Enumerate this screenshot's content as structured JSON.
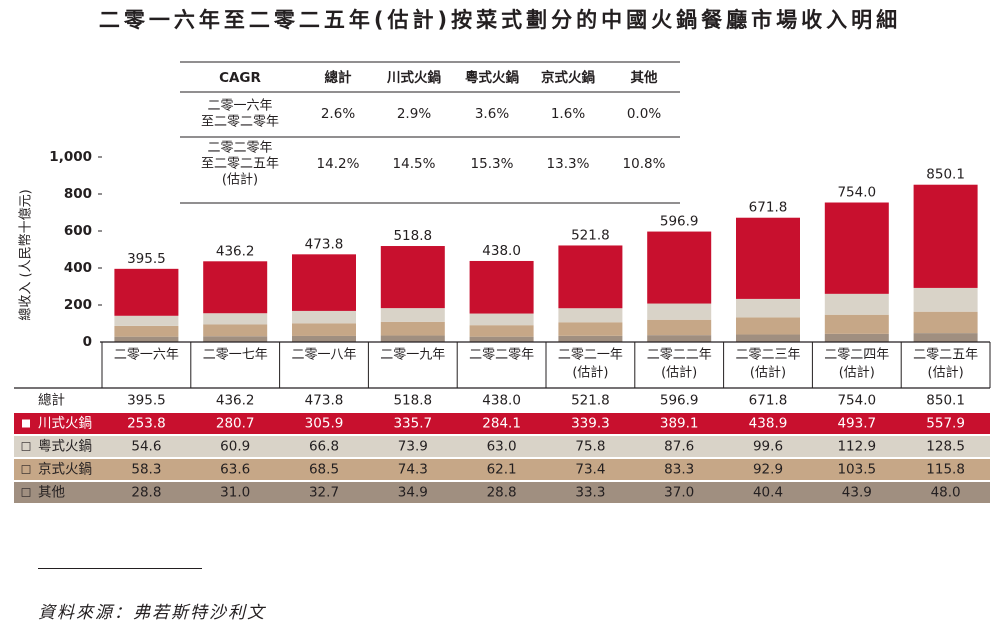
{
  "title": "二零一六年至二零二五年(估計)按菜式劃分的中國火鍋餐廳市場收入明細",
  "source": "資料來源：弗若斯特沙利文",
  "colors": {
    "sichuan": "#c8102e",
    "cantonese": "#d9d3c8",
    "beijing": "#c6a787",
    "others": "#a08f80",
    "text": "#231f20"
  },
  "cagr_table": {
    "headers": [
      "CAGR",
      "總計",
      "川式火鍋",
      "粵式火鍋",
      "京式火鍋",
      "其他"
    ],
    "rows": [
      {
        "period": [
          "二零一六年",
          "至二零二零年"
        ],
        "values": [
          "2.6%",
          "2.9%",
          "3.6%",
          "1.6%",
          "0.0%"
        ]
      },
      {
        "period": [
          "二零二零年",
          "至二零二五年",
          "(估計)"
        ],
        "values": [
          "14.2%",
          "14.5%",
          "15.3%",
          "13.3%",
          "10.8%"
        ]
      }
    ]
  },
  "chart_data": {
    "type": "bar",
    "stacked": true,
    "ylabel": "總收入 (人民幣十億元)",
    "ylim": [
      0,
      1000
    ],
    "yticks": [
      "0",
      "200",
      "400",
      "600",
      "800",
      "1,000"
    ],
    "ytick_values": [
      0,
      200,
      400,
      600,
      800,
      1000
    ],
    "categories": [
      [
        "二零一六年"
      ],
      [
        "二零一七年"
      ],
      [
        "二零一八年"
      ],
      [
        "二零一九年"
      ],
      [
        "二零二零年"
      ],
      [
        "二零二一年",
        "(估計)"
      ],
      [
        "二零二二年",
        "(估計)"
      ],
      [
        "二零二三年",
        "(估計)"
      ],
      [
        "二零二四年",
        "(估計)"
      ],
      [
        "二零二五年",
        "(估計)"
      ]
    ],
    "totals": [
      395.5,
      436.2,
      473.8,
      518.8,
      438.0,
      521.8,
      596.9,
      671.8,
      754.0,
      850.1
    ],
    "total_labels": [
      "395.5",
      "436.2",
      "473.8",
      "518.8",
      "438.0",
      "521.8",
      "596.9",
      "671.8",
      "754.0",
      "850.1"
    ],
    "total_row_label": "總計",
    "series": [
      {
        "name": "其他",
        "key": "others",
        "values": [
          28.8,
          31.0,
          32.7,
          34.9,
          28.8,
          33.3,
          37.0,
          40.4,
          43.9,
          48.0
        ],
        "labels": [
          "28.8",
          "31.0",
          "32.7",
          "34.9",
          "28.8",
          "33.3",
          "37.0",
          "40.4",
          "43.9",
          "48.0"
        ]
      },
      {
        "name": "京式火鍋",
        "key": "beijing",
        "values": [
          58.3,
          63.6,
          68.5,
          74.3,
          62.1,
          73.4,
          83.3,
          92.9,
          103.5,
          115.8
        ],
        "labels": [
          "58.3",
          "63.6",
          "68.5",
          "74.3",
          "62.1",
          "73.4",
          "83.3",
          "92.9",
          "103.5",
          "115.8"
        ]
      },
      {
        "name": "粵式火鍋",
        "key": "cantonese",
        "values": [
          54.6,
          60.9,
          66.8,
          73.9,
          63.0,
          75.8,
          87.6,
          99.6,
          112.9,
          128.5
        ],
        "labels": [
          "54.6",
          "60.9",
          "66.8",
          "73.9",
          "63.0",
          "75.8",
          "87.6",
          "99.6",
          "112.9",
          "128.5"
        ]
      },
      {
        "name": "川式火鍋",
        "key": "sichuan",
        "values": [
          253.8,
          280.7,
          305.9,
          335.7,
          284.1,
          339.3,
          389.1,
          438.9,
          493.7,
          557.9
        ],
        "labels": [
          "253.8",
          "280.7",
          "305.9",
          "335.7",
          "284.1",
          "339.3",
          "389.1",
          "438.9",
          "493.7",
          "557.9"
        ]
      }
    ],
    "table_order": [
      "sichuan",
      "cantonese",
      "beijing",
      "others"
    ]
  }
}
